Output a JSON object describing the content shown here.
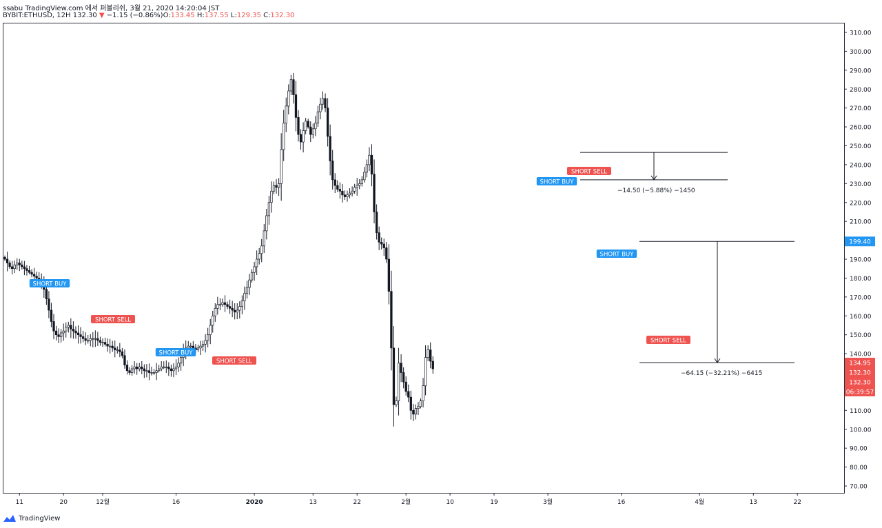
{
  "header": {
    "line1": "ssabu TradingView.com 에서 퍼블리쉬, 3월 21, 2020 14:20:04 JST",
    "symbol": "BYBIT:ETHUSD, 12H",
    "last": "132.30",
    "arrow": "▼",
    "change": "−1.15 (−0.86%)",
    "o_label": "O:",
    "o_val": "133.45",
    "h_label": "H:",
    "h_val": "137.55",
    "l_label": "L:",
    "l_val": "129.35",
    "c_label": "C:",
    "c_val": "132.30"
  },
  "footer": {
    "brand": "TradingView"
  },
  "colors": {
    "up": "#26a69a",
    "down": "#ef5350",
    "candle": "#131722",
    "buy": "#2196f3",
    "sell": "#ef5350"
  },
  "chart_data": {
    "type": "candlestick",
    "symbol": "BYBIT:ETHUSD",
    "interval": "12H",
    "ylim": [
      65,
      315
    ],
    "y_ticks": [
      "310.00",
      "300.00",
      "290.00",
      "280.00",
      "270.00",
      "260.00",
      "250.00",
      "240.00",
      "230.00",
      "220.00",
      "210.00",
      "200.00",
      "190.00",
      "180.00",
      "170.00",
      "160.00",
      "150.00",
      "140.00",
      "130.00",
      "120.00",
      "110.00",
      "100.00",
      "90.00",
      "80.00",
      "70.00"
    ],
    "x_ticks": [
      {
        "label": "11",
        "idx": 6
      },
      {
        "label": "20",
        "idx": 24
      },
      {
        "label": "12월",
        "idx": 40
      },
      {
        "label": "16",
        "idx": 70
      },
      {
        "label": "2020",
        "idx": 102
      },
      {
        "label": "13",
        "idx": 126
      },
      {
        "label": "22",
        "idx": 144
      },
      {
        "label": "2월",
        "idx": 164
      },
      {
        "label": "10",
        "idx": 182
      },
      {
        "label": "19",
        "idx": 200
      },
      {
        "label": "3월",
        "idx": 222
      },
      {
        "label": "16",
        "idx": 252
      },
      {
        "label": "4월",
        "idx": 284
      },
      {
        "label": "13",
        "idx": 306
      },
      {
        "label": "22",
        "idx": 324
      }
    ],
    "close": [
      190,
      188,
      186,
      185,
      187,
      188,
      187,
      186,
      185,
      184,
      183,
      182,
      181,
      180,
      179,
      177,
      174,
      169,
      163,
      157,
      152,
      150,
      149,
      151,
      152,
      154,
      155,
      153,
      152,
      151,
      150,
      149,
      148,
      147,
      147,
      148,
      148,
      148,
      147,
      146,
      146,
      145,
      144,
      144,
      143,
      142,
      142,
      141,
      139,
      134,
      131,
      130,
      132,
      133,
      132,
      133,
      132,
      131,
      131,
      130,
      130,
      130,
      131,
      132,
      133,
      133,
      133,
      132,
      131,
      132,
      133,
      135,
      138,
      141,
      143,
      144,
      144,
      143,
      142,
      143,
      144,
      145,
      147,
      150,
      155,
      160,
      164,
      166,
      166,
      167,
      166,
      165,
      164,
      163,
      162,
      163,
      165,
      168,
      172,
      175,
      179,
      183,
      186,
      190,
      193,
      197,
      205,
      213,
      220,
      226,
      229,
      228,
      230,
      248,
      262,
      271,
      279,
      285,
      277,
      265,
      256,
      252,
      258,
      263,
      260,
      256,
      259,
      262,
      268,
      272,
      275,
      270,
      255,
      242,
      232,
      229,
      227,
      226,
      224,
      223,
      224,
      225,
      226,
      228,
      229,
      230,
      232,
      236,
      240,
      245,
      235,
      215,
      204,
      199,
      198,
      196,
      190,
      173,
      143,
      113,
      115,
      135,
      130,
      125,
      120,
      117,
      110,
      108,
      111,
      112,
      115,
      123,
      138,
      142,
      136,
      132
    ],
    "last_price": "132.30",
    "labels": {
      "price_199": "199.40",
      "price_13495": "134.95",
      "price_1323a": "132.30",
      "price_1323b": "132.30",
      "countdown": "06:39:57"
    },
    "signals": [
      {
        "text": "SHORT BUY",
        "type": "buy",
        "idx": 16
      },
      {
        "text": "SHORT SELL",
        "type": "sell",
        "idx": 37
      },
      {
        "text": "SHORT BUY",
        "type": "buy",
        "idx": 62
      },
      {
        "text": "SHORT SELL",
        "type": "sell",
        "idx": 84
      },
      {
        "text": "SHORT BUY",
        "type": "buy",
        "idx": 211
      },
      {
        "text": "SHORT SELL",
        "type": "sell",
        "idx": 225
      },
      {
        "text": "SHORT BUY",
        "type": "buy",
        "idx": 233
      },
      {
        "text": "SHORT SELL",
        "type": "sell",
        "idx": 259
      }
    ],
    "measures": [
      {
        "top": 246.5,
        "bottom": 232,
        "label": "−14.50 (−5.88%) −1450"
      },
      {
        "top": 199.4,
        "bottom": 135.25,
        "label": "−64.15 (−32.21%) −6415"
      }
    ]
  }
}
